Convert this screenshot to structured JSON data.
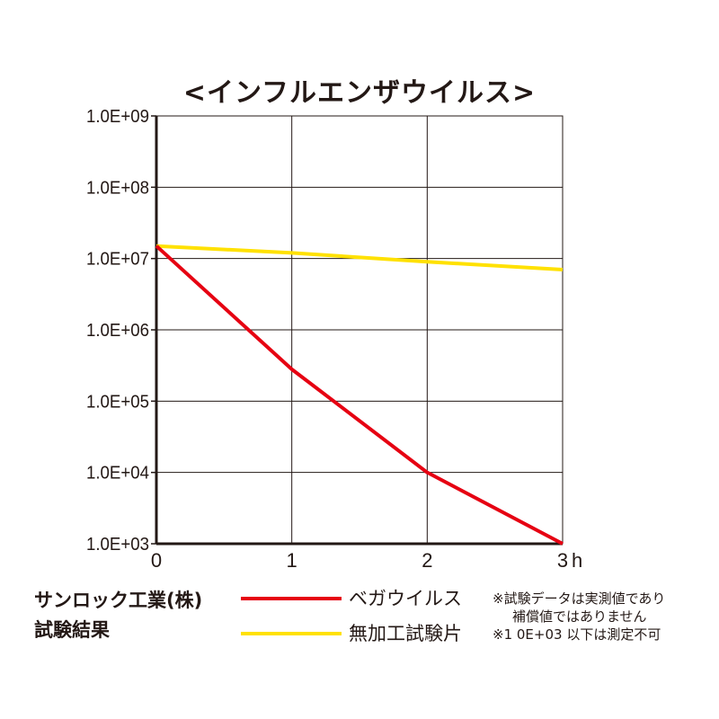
{
  "chart_data": {
    "type": "line",
    "title": "<インフルエンザウイルス>",
    "x": [
      0,
      1,
      2,
      3
    ],
    "x_tick_labels": [
      "0",
      "1",
      "2",
      "3"
    ],
    "x_unit": "h",
    "xlim": [
      0,
      3
    ],
    "y_scale": "log",
    "ylim": [
      1000,
      1000000000
    ],
    "y_tick_values": [
      1000,
      10000,
      100000,
      1000000,
      10000000,
      100000000,
      1000000000
    ],
    "y_tick_labels": [
      "1.0E+03",
      "1.0E+04",
      "1.0E+05",
      "1.0E+06",
      "1.0E+07",
      "1.0E+08",
      "1.0E+09"
    ],
    "grid": true,
    "legend_position": "bottom",
    "series": [
      {
        "name": "ベガウイルス",
        "color": "#e60012",
        "values": [
          15000000,
          280000,
          10000,
          1000
        ]
      },
      {
        "name": "無加工試験片",
        "color": "#ffe100",
        "values": [
          15000000,
          12000000,
          9000000,
          7000000
        ]
      }
    ]
  },
  "company": {
    "line1": "サンロック工業(株)",
    "line2": "試験結果"
  },
  "notes": [
    "※試験データは実測値であり",
    "補償値ではありません",
    "※1 0E+03 以下は測定不可"
  ]
}
